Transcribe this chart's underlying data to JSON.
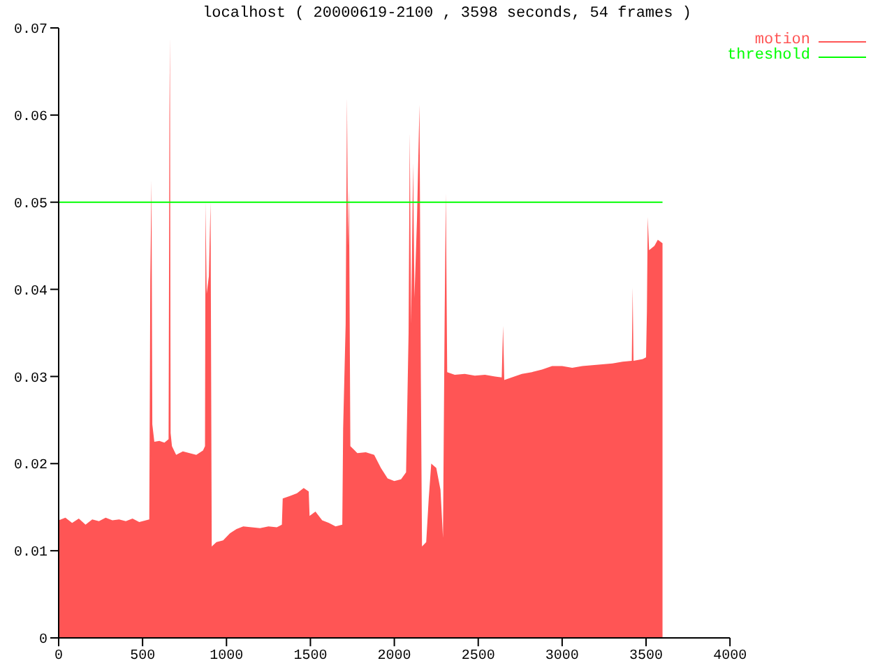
{
  "chart_data": {
    "type": "area",
    "title": "localhost ( 20000619-2100 , 3598 seconds, 54 frames )",
    "xlim": [
      0,
      4000
    ],
    "xticks": [
      0,
      500,
      1000,
      1500,
      2000,
      2500,
      3000,
      3500,
      4000
    ],
    "ylim": [
      0,
      0.07
    ],
    "yticks": [
      0,
      0.01,
      0.02,
      0.03,
      0.04,
      0.05,
      0.06,
      0.07
    ],
    "legend": "top right",
    "series": [
      {
        "name": "motion",
        "color": "#ff5555",
        "x": [
          0,
          40,
          80,
          120,
          160,
          200,
          240,
          280,
          320,
          360,
          400,
          440,
          480,
          520,
          540,
          546,
          553,
          558,
          570,
          600,
          630,
          655,
          660,
          663,
          667,
          675,
          700,
          740,
          780,
          820,
          860,
          872,
          875,
          882,
          895,
          905,
          912,
          940,
          980,
          1020,
          1060,
          1100,
          1150,
          1200,
          1250,
          1300,
          1330,
          1335,
          1380,
          1420,
          1460,
          1490,
          1495,
          1530,
          1570,
          1610,
          1650,
          1690,
          1695,
          1710,
          1718,
          1724,
          1730,
          1738,
          1780,
          1830,
          1880,
          1920,
          1960,
          2000,
          2040,
          2070,
          2085,
          2092,
          2100,
          2112,
          2120,
          2135,
          2150,
          2158,
          2165,
          2190,
          2205,
          2220,
          2250,
          2275,
          2290,
          2300,
          2307,
          2315,
          2360,
          2420,
          2480,
          2540,
          2600,
          2640,
          2648,
          2655,
          2700,
          2760,
          2820,
          2880,
          2940,
          3000,
          3060,
          3120,
          3180,
          3240,
          3300,
          3360,
          3415,
          3420,
          3425,
          3480,
          3500,
          3505,
          3510,
          3518,
          3550,
          3570,
          3598
        ],
        "values": [
          0.0135,
          0.0138,
          0.0132,
          0.0137,
          0.013,
          0.0136,
          0.0134,
          0.0138,
          0.0135,
          0.0136,
          0.0134,
          0.0137,
          0.0133,
          0.0135,
          0.0136,
          0.041,
          0.0525,
          0.0245,
          0.0225,
          0.0226,
          0.0224,
          0.0228,
          0.06,
          0.069,
          0.0235,
          0.022,
          0.021,
          0.0214,
          0.0212,
          0.021,
          0.0215,
          0.022,
          0.05,
          0.0395,
          0.0415,
          0.05,
          0.0105,
          0.011,
          0.0112,
          0.012,
          0.0125,
          0.0128,
          0.0127,
          0.0126,
          0.0128,
          0.0127,
          0.013,
          0.016,
          0.0163,
          0.0166,
          0.0172,
          0.0168,
          0.014,
          0.0145,
          0.0135,
          0.0132,
          0.0128,
          0.013,
          0.024,
          0.036,
          0.062,
          0.045,
          0.0515,
          0.022,
          0.0212,
          0.0213,
          0.021,
          0.0195,
          0.0183,
          0.018,
          0.0182,
          0.019,
          0.035,
          0.058,
          0.036,
          0.0545,
          0.039,
          0.048,
          0.0612,
          0.03,
          0.0105,
          0.011,
          0.016,
          0.02,
          0.0195,
          0.017,
          0.0115,
          0.037,
          0.051,
          0.0305,
          0.0302,
          0.0303,
          0.0301,
          0.0302,
          0.03,
          0.0299,
          0.0358,
          0.0296,
          0.0299,
          0.0303,
          0.0305,
          0.0308,
          0.0312,
          0.0312,
          0.031,
          0.0312,
          0.0313,
          0.0314,
          0.0315,
          0.0317,
          0.0318,
          0.0402,
          0.0318,
          0.032,
          0.0322,
          0.0375,
          0.0483,
          0.0445,
          0.045,
          0.0457,
          0.0453
        ]
      },
      {
        "name": "threshold",
        "type": "line",
        "color": "#00ff00",
        "x": [
          0,
          3598
        ],
        "values": [
          0.05,
          0.05
        ]
      }
    ]
  }
}
